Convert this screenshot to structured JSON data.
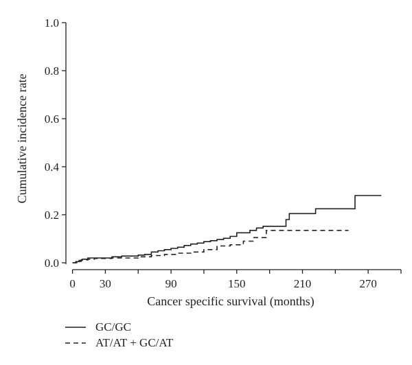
{
  "chart_data": {
    "type": "line",
    "title": "",
    "xlabel": "Cancer specific survival (months)",
    "ylabel": "Cumulative incidence rate",
    "xlim": [
      -6,
      300
    ],
    "ylim": [
      0,
      1.0
    ],
    "x_ticks": [
      0,
      30,
      90,
      150,
      210,
      270
    ],
    "x_ticks_unlabeled": [
      60,
      120,
      180,
      240,
      300
    ],
    "y_ticks": [
      0.0,
      0.2,
      0.4,
      0.6,
      0.8,
      1.0
    ],
    "y_tick_labels": [
      "0.0",
      "0.2",
      "0.4",
      "0.6",
      "0.8",
      "1.0"
    ],
    "grid": false,
    "legend_position": "bottom-left",
    "series": [
      {
        "name": "GC/GC",
        "style": "solid",
        "color": "#231f20",
        "step": true,
        "x": [
          0,
          3,
          6,
          9,
          14,
          30,
          36,
          45,
          60,
          66,
          72,
          78,
          84,
          90,
          96,
          102,
          108,
          114,
          120,
          126,
          132,
          138,
          144,
          150,
          162,
          168,
          174,
          180,
          195,
          198,
          222,
          258,
          282
        ],
        "y": [
          0,
          0.005,
          0.01,
          0.015,
          0.02,
          0.02,
          0.025,
          0.028,
          0.032,
          0.035,
          0.045,
          0.05,
          0.055,
          0.06,
          0.065,
          0.072,
          0.078,
          0.082,
          0.088,
          0.092,
          0.097,
          0.102,
          0.11,
          0.125,
          0.135,
          0.145,
          0.152,
          0.152,
          0.18,
          0.205,
          0.225,
          0.28,
          0.28
        ]
      },
      {
        "name": "AT/AT + GC/AT",
        "style": "dashed",
        "color": "#231f20",
        "step": true,
        "x": [
          0,
          4,
          8,
          14,
          20,
          30,
          36,
          60,
          72,
          84,
          96,
          108,
          120,
          132,
          144,
          156,
          165,
          177,
          252
        ],
        "y": [
          0,
          0.006,
          0.012,
          0.015,
          0.018,
          0.018,
          0.02,
          0.025,
          0.03,
          0.035,
          0.04,
          0.045,
          0.055,
          0.07,
          0.075,
          0.09,
          0.105,
          0.135,
          0.135
        ]
      }
    ]
  }
}
